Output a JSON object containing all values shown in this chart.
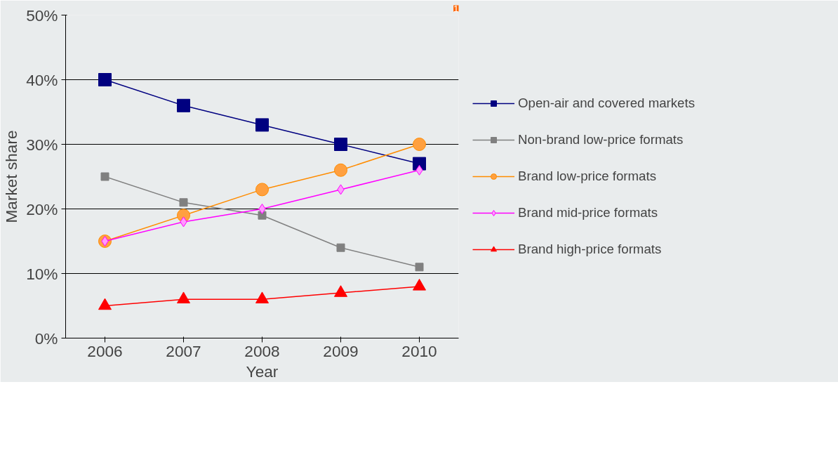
{
  "chart_data": {
    "type": "line",
    "xlabel": "Year",
    "ylabel": "Market share",
    "categories": [
      "2006",
      "2007",
      "2008",
      "2009",
      "2010"
    ],
    "ylim": [
      0,
      50
    ],
    "yticks": [
      {
        "value": 0,
        "label": "0%"
      },
      {
        "value": 10,
        "label": "10%"
      },
      {
        "value": 20,
        "label": "20%"
      },
      {
        "value": 30,
        "label": "30%"
      },
      {
        "value": 40,
        "label": "40%"
      },
      {
        "value": 50,
        "label": "50%"
      }
    ],
    "grid": "y",
    "legend": "right",
    "line_style": "solid",
    "series": [
      {
        "name": "Open-air and covered markets",
        "color": "#000080",
        "marker": "square",
        "values": [
          40,
          36,
          33,
          30,
          27
        ]
      },
      {
        "name": "Non-brand low-price formats",
        "color": "#808080",
        "marker": "square",
        "values": [
          25,
          21,
          19,
          14,
          11
        ]
      },
      {
        "name": "Brand low-price formats",
        "color": "#ff8c00",
        "marker": "circle",
        "values": [
          15,
          19,
          23,
          26,
          30
        ]
      },
      {
        "name": "Brand mid-price formats",
        "color": "#ff00ff",
        "marker": "diamond",
        "values": [
          15,
          18,
          20,
          23,
          26
        ]
      },
      {
        "name": "Brand high-price formats",
        "color": "#ff0000",
        "marker": "triangle",
        "values": [
          5,
          6,
          6,
          7,
          8
        ]
      }
    ],
    "annotations": [
      "1"
    ]
  }
}
